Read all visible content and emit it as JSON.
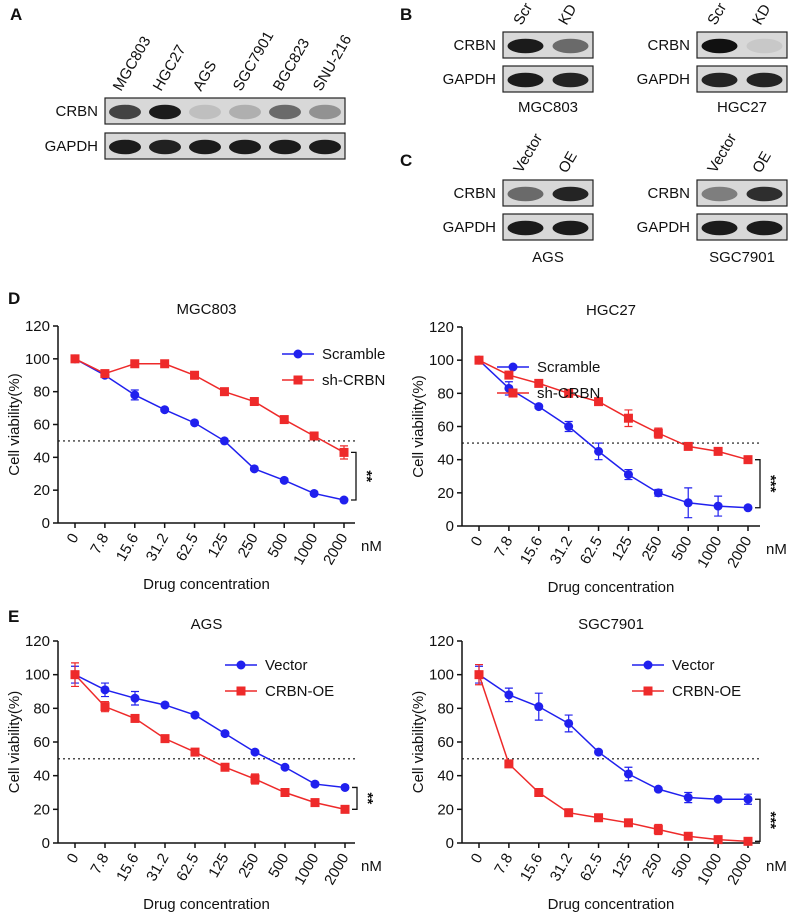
{
  "figure": {
    "panel_a": {
      "letter": "A",
      "lanes": [
        "MGC803",
        "HGC27",
        "AGS",
        "SGC7901",
        "BGC823",
        "SNU-216"
      ],
      "rows": [
        "CRBN",
        "GAPDH"
      ]
    },
    "panel_b": {
      "letter": "B",
      "blots": [
        {
          "lanes": [
            "Scr",
            "KD"
          ],
          "rows": [
            "CRBN",
            "GAPDH"
          ],
          "cell_line": "MGC803"
        },
        {
          "lanes": [
            "Scr",
            "KD"
          ],
          "rows": [
            "CRBN",
            "GAPDH"
          ],
          "cell_line": "HGC27"
        }
      ]
    },
    "panel_c": {
      "letter": "C",
      "blots": [
        {
          "lanes": [
            "Vector",
            "OE"
          ],
          "rows": [
            "CRBN",
            "GAPDH"
          ],
          "cell_line": "AGS"
        },
        {
          "lanes": [
            "Vector",
            "OE"
          ],
          "rows": [
            "CRBN",
            "GAPDH"
          ],
          "cell_line": "SGC7901"
        }
      ]
    }
  },
  "chart_data": [
    {
      "type": "line",
      "panel": "D",
      "title": "MGC803",
      "xlabel": "Drug concentration",
      "ylabel": "Cell viability(%)",
      "x_unit": "nM",
      "categories": [
        "0",
        "7.8",
        "15.6",
        "31.2",
        "62.5",
        "125",
        "250",
        "500",
        "1000",
        "2000"
      ],
      "series": [
        {
          "name": "Scramble",
          "color": "#2020ee",
          "marker": "circle",
          "values": [
            100,
            90,
            78,
            69,
            61,
            50,
            33,
            26,
            18,
            14
          ],
          "errors": [
            1,
            1,
            3,
            1,
            1,
            1,
            1,
            1,
            1,
            1
          ]
        },
        {
          "name": "sh-CRBN",
          "color": "#ee2a2a",
          "marker": "square",
          "values": [
            100,
            91,
            97,
            97,
            90,
            80,
            74,
            63,
            53,
            43
          ],
          "errors": [
            1,
            1,
            1,
            1,
            1,
            1,
            1,
            1,
            1,
            4
          ]
        }
      ],
      "ylim": [
        0,
        120
      ],
      "yticks": [
        0,
        20,
        40,
        60,
        80,
        100,
        120
      ],
      "reference_line": 50,
      "significance": "**",
      "legend": "upper right"
    },
    {
      "type": "line",
      "title": "HGC27",
      "xlabel": "Drug concentration",
      "ylabel": "Cell viability(%)",
      "x_unit": "nM",
      "categories": [
        "0",
        "7.8",
        "15.6",
        "31.2",
        "62.5",
        "125",
        "250",
        "500",
        "1000",
        "2000"
      ],
      "series": [
        {
          "name": "Scramble",
          "color": "#2020ee",
          "marker": "circle",
          "values": [
            100,
            83,
            72,
            60,
            45,
            31,
            20,
            14,
            12,
            11
          ],
          "errors": [
            1,
            4,
            1,
            3,
            5,
            3,
            2,
            9,
            6,
            1
          ]
        },
        {
          "name": "sh-CRBN",
          "color": "#ee2a2a",
          "marker": "square",
          "values": [
            100,
            91,
            86,
            80,
            75,
            65,
            56,
            48,
            45,
            40
          ],
          "errors": [
            1,
            1,
            1,
            1,
            1,
            5,
            3,
            2,
            2,
            1
          ]
        }
      ],
      "ylim": [
        0,
        120
      ],
      "yticks": [
        0,
        20,
        40,
        60,
        80,
        100,
        120
      ],
      "reference_line": 50,
      "significance": "***",
      "legend": "upper right"
    },
    {
      "type": "line",
      "panel": "E",
      "title": "AGS",
      "xlabel": "Drug concentration",
      "ylabel": "Cell viability(%)",
      "x_unit": "nM",
      "categories": [
        "0",
        "7.8",
        "15.6",
        "31.2",
        "62.5",
        "125",
        "250",
        "500",
        "1000",
        "2000"
      ],
      "series": [
        {
          "name": "Vector",
          "color": "#2020ee",
          "marker": "circle",
          "values": [
            100,
            91,
            86,
            82,
            76,
            65,
            54,
            45,
            35,
            33
          ],
          "errors": [
            5,
            4,
            4,
            1,
            1,
            1,
            1,
            1,
            1,
            1
          ]
        },
        {
          "name": "CRBN-OE",
          "color": "#ee2a2a",
          "marker": "square",
          "values": [
            100,
            81,
            74,
            62,
            54,
            45,
            38,
            30,
            24,
            20
          ],
          "errors": [
            7,
            3,
            1,
            1,
            1,
            1,
            3,
            1,
            1,
            1
          ]
        }
      ],
      "ylim": [
        0,
        120
      ],
      "yticks": [
        0,
        20,
        40,
        60,
        80,
        100,
        120
      ],
      "reference_line": 50,
      "significance": "**",
      "legend": "upper right"
    },
    {
      "type": "line",
      "title": "SGC7901",
      "xlabel": "Drug concentration",
      "ylabel": "Cell viability(%)",
      "x_unit": "nM",
      "categories": [
        "0",
        "7.8",
        "15.6",
        "31.2",
        "62.5",
        "125",
        "250",
        "500",
        "1000",
        "2000"
      ],
      "series": [
        {
          "name": "Vector",
          "color": "#2020ee",
          "marker": "circle",
          "values": [
            100,
            88,
            81,
            71,
            54,
            41,
            32,
            27,
            26,
            26
          ],
          "errors": [
            5,
            4,
            8,
            5,
            1,
            4,
            1,
            3,
            1,
            3
          ]
        },
        {
          "name": "CRBN-OE",
          "color": "#ee2a2a",
          "marker": "square",
          "values": [
            100,
            47,
            30,
            18,
            15,
            12,
            8,
            4,
            2,
            1
          ],
          "errors": [
            6,
            1,
            1,
            1,
            1,
            1,
            3,
            1,
            1,
            1
          ]
        }
      ],
      "ylim": [
        0,
        120
      ],
      "yticks": [
        0,
        20,
        40,
        60,
        80,
        100,
        120
      ],
      "reference_line": 50,
      "significance": "***",
      "legend": "upper right"
    }
  ]
}
